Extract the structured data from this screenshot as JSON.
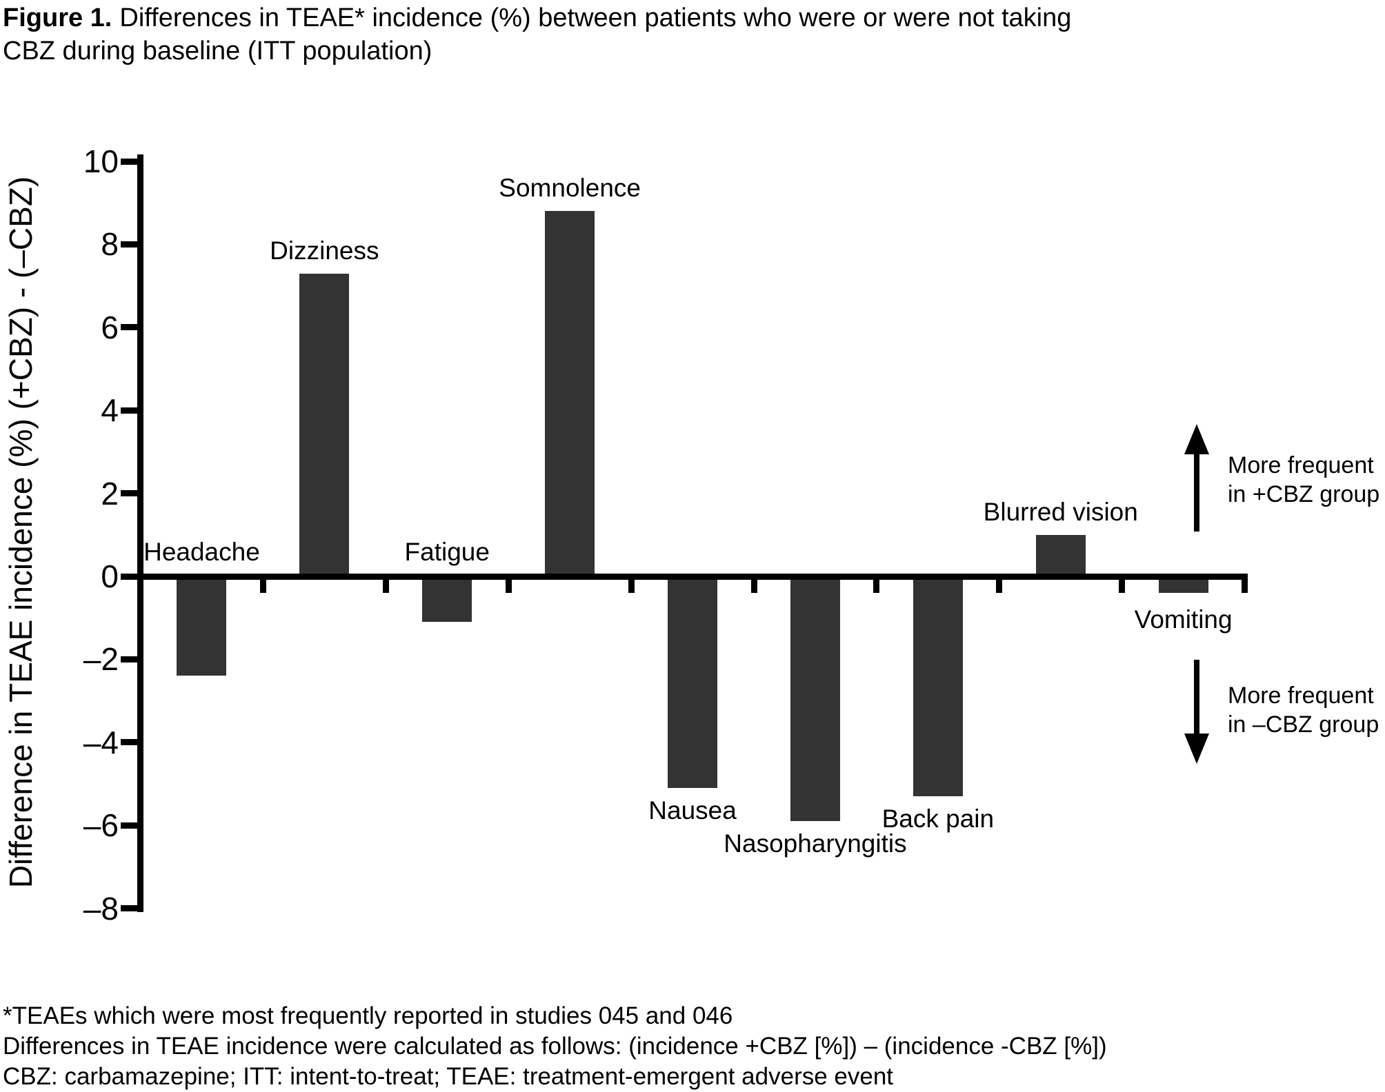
{
  "figure": {
    "label": "Figure 1.",
    "title_line1": "Differences in TEAE* incidence (%) between patients who were or were not taking",
    "title_line2": "CBZ during baseline (ITT population)"
  },
  "chart_data": {
    "type": "bar",
    "title": "Figure 1. Differences in TEAE* incidence (%) between patients who were or were not taking CBZ during baseline (ITT population)",
    "xlabel": "",
    "ylabel": "Difference in TEAE incidence (%) (+CBZ) - (–CBZ)",
    "ylim": [
      -8,
      10
    ],
    "yticks": [
      10,
      8,
      6,
      4,
      2,
      0,
      -2,
      -4,
      -6,
      -8
    ],
    "ytick_labels": [
      "10",
      "8",
      "6",
      "4",
      "2",
      "0",
      "–2",
      "–4",
      "–6",
      "–8"
    ],
    "grid": false,
    "legend_position": "none",
    "bar_color": "#333333",
    "axis_color": "#000000",
    "categories": [
      "Headache",
      "Dizziness",
      "Fatigue",
      "Somnolence",
      "Nausea",
      "Nasopharyngitis",
      "Back pain",
      "Blurred vision",
      "Vomiting"
    ],
    "values": [
      -2.4,
      7.3,
      -1.1,
      8.8,
      -5.1,
      -5.9,
      -5.3,
      1.0,
      -0.4
    ],
    "label_positions": [
      "above_axis",
      "above_bar",
      "above_axis",
      "above_bar",
      "below_bar",
      "below_bar",
      "below_bar",
      "above_bar",
      "below_bar"
    ],
    "annotations": {
      "up_arrow": {
        "line1": "More frequent",
        "line2": "in +CBZ group"
      },
      "down_arrow": {
        "line1": "More frequent",
        "line2": "in –CBZ group"
      }
    }
  },
  "footnotes": [
    "*TEAEs which were most frequently reported in studies 045 and 046",
    "Differences in TEAE incidence were calculated as follows: (incidence +CBZ [%]) – (incidence -CBZ [%])",
    "CBZ: carbamazepine; ITT: intent-to-treat; TEAE: treatment-emergent adverse event"
  ]
}
